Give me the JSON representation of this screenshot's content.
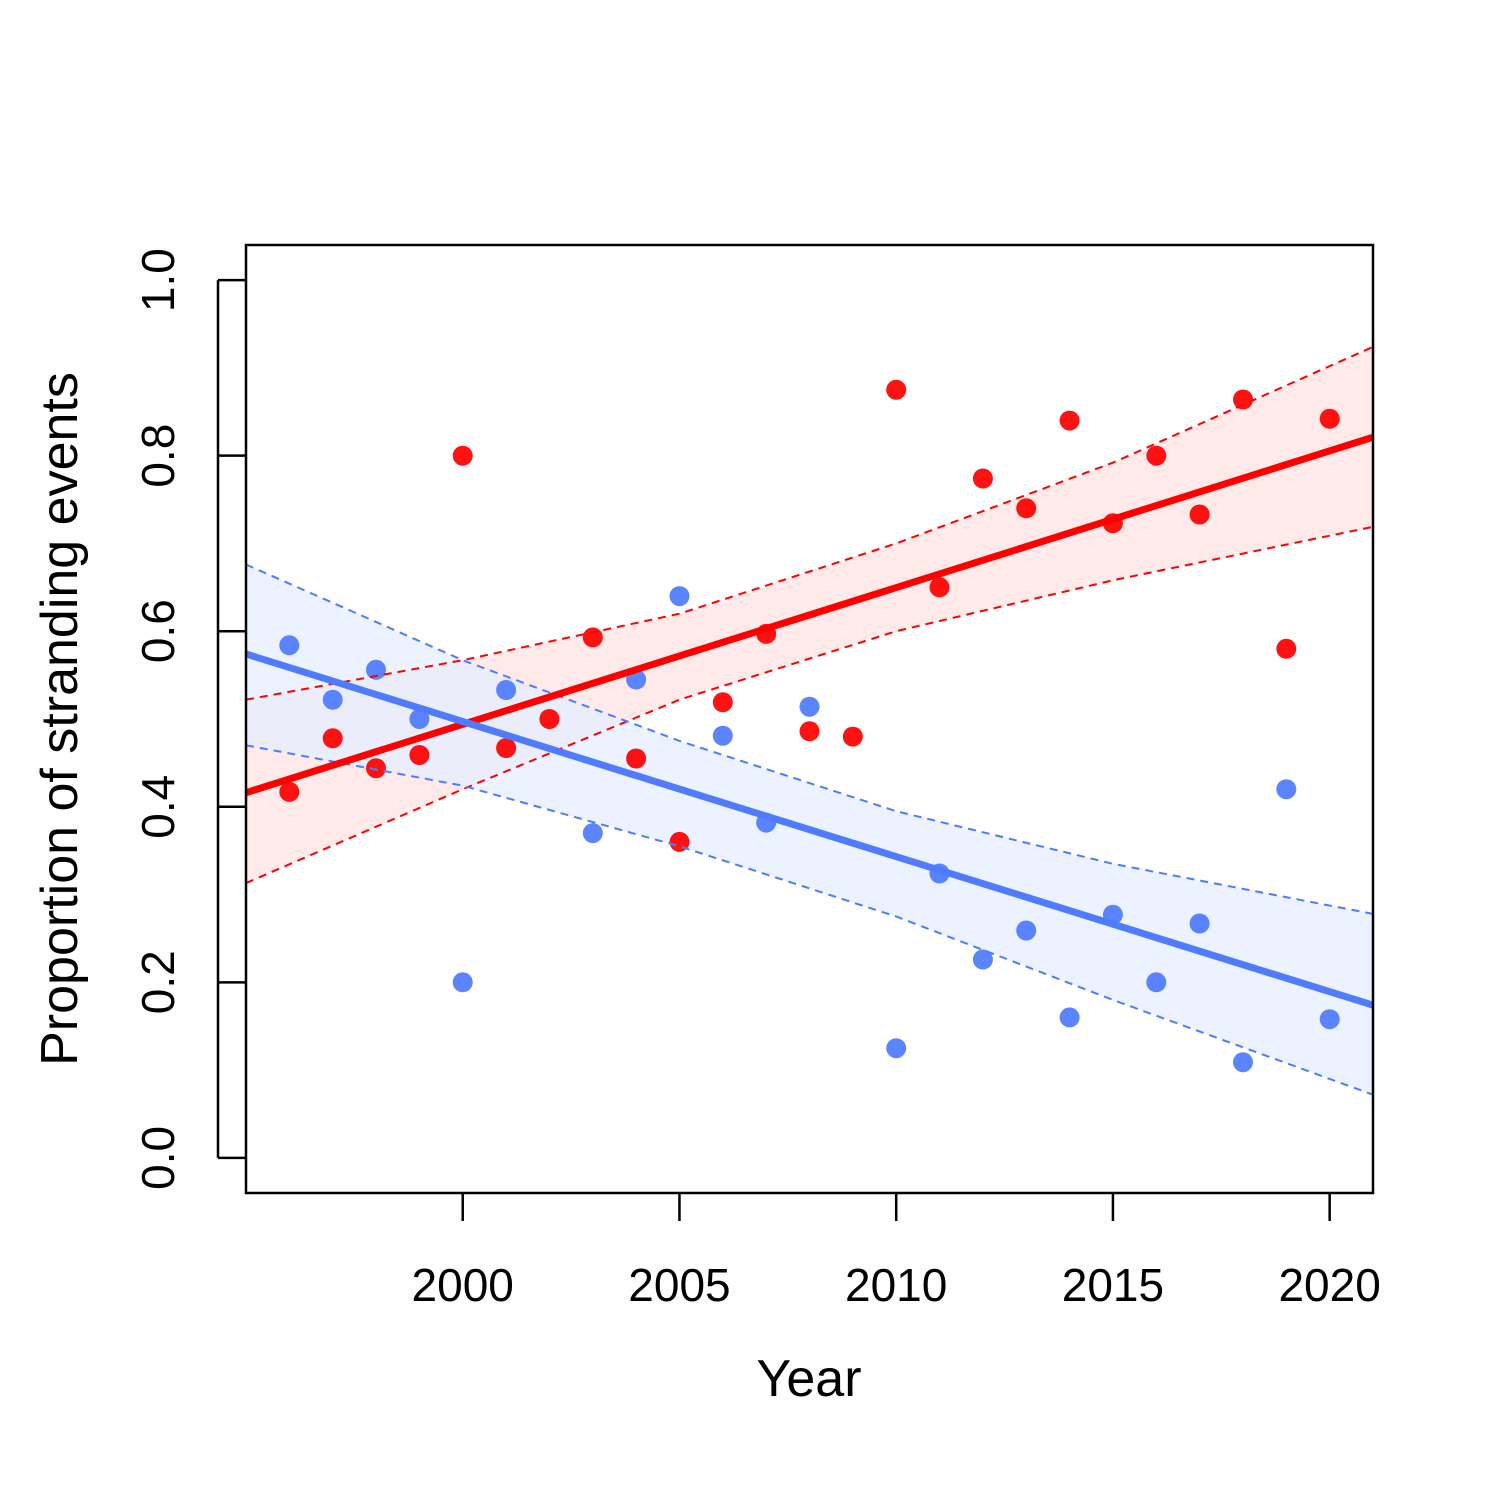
{
  "chart_data": {
    "type": "scatter",
    "title": "",
    "xlabel": "Year",
    "ylabel": "Proportion of stranding events",
    "xlim": [
      1995,
      2021
    ],
    "ylim": [
      -0.04,
      1.04
    ],
    "xticks": [
      2000,
      2005,
      2010,
      2015,
      2020
    ],
    "xtick_labels": [
      "2000",
      "2005",
      "2010",
      "2015",
      "2020"
    ],
    "yticks": [
      0.0,
      0.2,
      0.4,
      0.6,
      0.8,
      1.0
    ],
    "ytick_labels": [
      "0.0",
      "0.2",
      "0.4",
      "0.6",
      "0.8",
      "1.0"
    ],
    "grid": false,
    "legend": "none",
    "series": [
      {
        "color": "#ff0000",
        "band_fill": "#ffe2e2",
        "x": [
          1996,
          1997,
          1998,
          1999,
          2000,
          2001,
          2002,
          2003,
          2004,
          2005,
          2006,
          2007,
          2008,
          2009,
          2010,
          2011,
          2012,
          2013,
          2014,
          2015,
          2016,
          2017,
          2018,
          2019,
          2020
        ],
        "y": [
          0.417,
          0.478,
          0.444,
          0.459,
          0.8,
          0.467,
          0.5,
          0.593,
          0.455,
          0.36,
          0.519,
          0.597,
          0.486,
          0.48,
          0.875,
          0.65,
          0.774,
          0.74,
          0.84,
          0.723,
          0.8,
          0.733,
          0.864,
          0.58,
          0.842
        ],
        "fit": {
          "x": [
            1995,
            2021
          ],
          "y": [
            0.416,
            0.821
          ]
        },
        "ci_upper": {
          "x": [
            1995,
            2000,
            2005,
            2010,
            2015,
            2021
          ],
          "y": [
            0.522,
            0.567,
            0.62,
            0.7,
            0.792,
            0.924
          ]
        },
        "ci_lower": {
          "x": [
            1995,
            2000,
            2005,
            2010,
            2015,
            2021
          ],
          "y": [
            0.313,
            0.42,
            0.522,
            0.6,
            0.658,
            0.719
          ]
        }
      },
      {
        "color": "#4f7cff",
        "band_fill": "#e6eeff",
        "x": [
          1996,
          1997,
          1998,
          1999,
          2000,
          2001,
          2003,
          2004,
          2005,
          2006,
          2007,
          2008,
          2010,
          2011,
          2012,
          2013,
          2014,
          2015,
          2016,
          2017,
          2018,
          2019,
          2020
        ],
        "y": [
          0.584,
          0.522,
          0.556,
          0.5,
          0.2,
          0.533,
          0.37,
          0.545,
          0.64,
          0.481,
          0.382,
          0.514,
          0.125,
          0.324,
          0.226,
          0.259,
          0.16,
          0.277,
          0.2,
          0.267,
          0.109,
          0.42,
          0.158
        ],
        "fit": {
          "x": [
            1995,
            2021
          ],
          "y": [
            0.574,
            0.174
          ]
        },
        "ci_upper": {
          "x": [
            1995,
            2000,
            2005,
            2010,
            2015,
            2021
          ],
          "y": [
            0.676,
            0.567,
            0.475,
            0.395,
            0.335,
            0.278
          ]
        },
        "ci_lower": {
          "x": [
            1995,
            2000,
            2005,
            2010,
            2015,
            2021
          ],
          "y": [
            0.47,
            0.424,
            0.355,
            0.275,
            0.18,
            0.072
          ]
        }
      }
    ]
  }
}
